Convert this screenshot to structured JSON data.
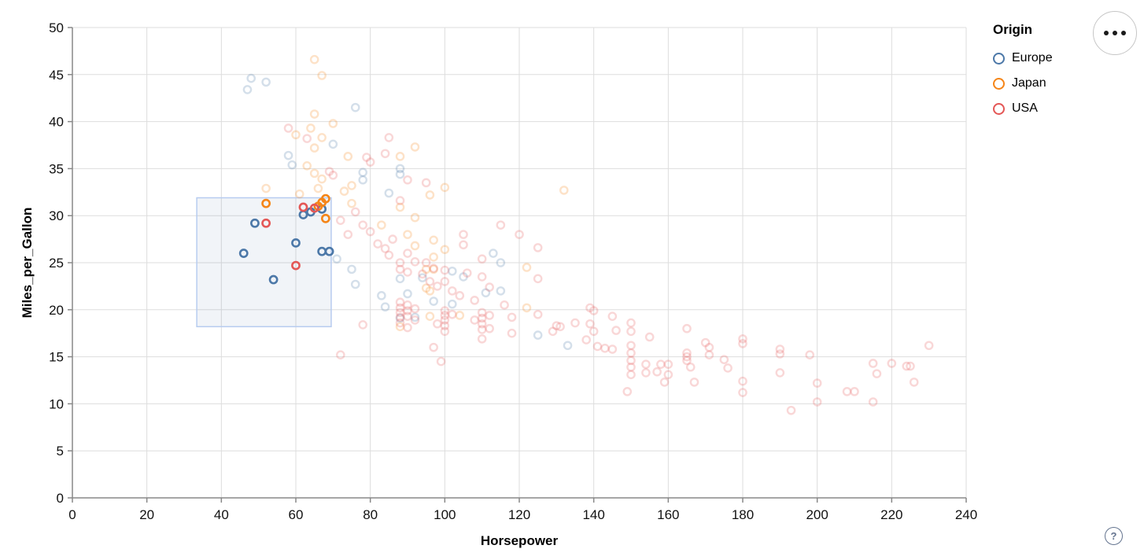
{
  "app": {
    "help_button_label": "?",
    "menu_button_icon": "ellipsis"
  },
  "legend": {
    "title": "Origin",
    "items": [
      {
        "label": "Europe",
        "color": "#4c78a8"
      },
      {
        "label": "Japan",
        "color": "#f58518"
      },
      {
        "label": "USA",
        "color": "#e45756"
      }
    ]
  },
  "chart_data": {
    "type": "scatter",
    "title": "",
    "xlabel": "Horsepower",
    "ylabel": "Miles_per_Gallon",
    "xlim": [
      0,
      240
    ],
    "ylim": [
      0,
      50
    ],
    "xticks": [
      0,
      20,
      40,
      60,
      80,
      100,
      120,
      140,
      160,
      180,
      200,
      220,
      240
    ],
    "yticks": [
      0,
      5,
      10,
      15,
      20,
      25,
      30,
      35,
      40,
      45,
      50
    ],
    "grid": true,
    "legend_position": "top-right",
    "point_style": {
      "shape": "open-circle",
      "radius": 4.6,
      "stroke_width": 2.4,
      "unselected_opacity": 0.24
    },
    "brush_selection": {
      "x": [
        33.4,
        69.5
      ],
      "y": [
        18.2,
        31.9
      ],
      "fill": "#4c78a8",
      "fill_opacity": 0.08,
      "stroke": "#b7ccf0"
    },
    "series": [
      {
        "name": "Europe",
        "color": "#4c78a8",
        "selected_points": [
          [
            46,
            26
          ],
          [
            49,
            29.2
          ],
          [
            54,
            23.2
          ],
          [
            60,
            27.1
          ],
          [
            62,
            30.1
          ],
          [
            64,
            30.4
          ],
          [
            67,
            26.2
          ],
          [
            69,
            26.2
          ],
          [
            67,
            30.7
          ]
        ],
        "unselected_points": [
          [
            48,
            44.6
          ],
          [
            52,
            44.2
          ],
          [
            47,
            43.4
          ],
          [
            76,
            41.5
          ],
          [
            70,
            37.6
          ],
          [
            58,
            36.4
          ],
          [
            59,
            35.4
          ],
          [
            78,
            34.6
          ],
          [
            88,
            35
          ],
          [
            88,
            34.4
          ],
          [
            78,
            33.8
          ],
          [
            85,
            32.4
          ],
          [
            75,
            24.3
          ],
          [
            76,
            22.7
          ],
          [
            88,
            23.3
          ],
          [
            94,
            23.4
          ],
          [
            71,
            25.4
          ],
          [
            83,
            21.5
          ],
          [
            84,
            20.3
          ],
          [
            90,
            21.7
          ],
          [
            97,
            20.9
          ],
          [
            102,
            24.1
          ],
          [
            105,
            23.5
          ],
          [
            111,
            21.8
          ],
          [
            113,
            26
          ],
          [
            115,
            25
          ],
          [
            115,
            22
          ],
          [
            102,
            20.6
          ],
          [
            88,
            19.1
          ],
          [
            92,
            19.2
          ],
          [
            125,
            17.3
          ],
          [
            133,
            16.2
          ]
        ]
      },
      {
        "name": "Japan",
        "color": "#f58518",
        "selected_points": [
          [
            52,
            31.3
          ],
          [
            66,
            31
          ],
          [
            68,
            31.8
          ],
          [
            67,
            31.4
          ],
          [
            68,
            29.7
          ]
        ],
        "unselected_points": [
          [
            65,
            46.6
          ],
          [
            67,
            44.9
          ],
          [
            65,
            40.8
          ],
          [
            70,
            39.8
          ],
          [
            64,
            39.3
          ],
          [
            60,
            38.6
          ],
          [
            67,
            38.3
          ],
          [
            65,
            37.2
          ],
          [
            74,
            36.3
          ],
          [
            63,
            35.3
          ],
          [
            65,
            34.5
          ],
          [
            67,
            33.9
          ],
          [
            75,
            33.2
          ],
          [
            73,
            32.6
          ],
          [
            61,
            32.3
          ],
          [
            66,
            32.9
          ],
          [
            52,
            32.9
          ],
          [
            92,
            37.3
          ],
          [
            88,
            36.3
          ],
          [
            100,
            33
          ],
          [
            96,
            32.2
          ],
          [
            132,
            32.7
          ],
          [
            75,
            31.3
          ],
          [
            88,
            30.9
          ],
          [
            92,
            29.8
          ],
          [
            83,
            29
          ],
          [
            90,
            28
          ],
          [
            97,
            27.4
          ],
          [
            92,
            26.8
          ],
          [
            100,
            26.4
          ],
          [
            97,
            25.6
          ],
          [
            122,
            24.5
          ],
          [
            95,
            24.3
          ],
          [
            97,
            24.3
          ],
          [
            95,
            22.3
          ],
          [
            96,
            22
          ],
          [
            122,
            20.2
          ],
          [
            104,
            19.4
          ],
          [
            96,
            19.3
          ],
          [
            88,
            18.2
          ]
        ]
      },
      {
        "name": "USA",
        "color": "#e45756",
        "selected_points": [
          [
            52,
            29.2
          ],
          [
            60,
            24.7
          ],
          [
            62,
            30.9
          ],
          [
            65,
            30.8
          ]
        ],
        "unselected_points": [
          [
            58,
            39.3
          ],
          [
            63,
            38.2
          ],
          [
            85,
            38.3
          ],
          [
            80,
            35.7
          ],
          [
            84,
            36.6
          ],
          [
            90,
            33.8
          ],
          [
            69,
            34.7
          ],
          [
            70,
            34.3
          ],
          [
            79,
            36.2
          ],
          [
            95,
            33.5
          ],
          [
            88,
            31.6
          ],
          [
            72,
            29.5
          ],
          [
            74,
            28
          ],
          [
            76,
            30.4
          ],
          [
            78,
            29
          ],
          [
            80,
            28.3
          ],
          [
            82,
            27
          ],
          [
            84,
            26.5
          ],
          [
            85,
            25.8
          ],
          [
            86,
            27.5
          ],
          [
            88,
            25
          ],
          [
            88,
            24.3
          ],
          [
            90,
            26
          ],
          [
            90,
            24
          ],
          [
            92,
            25.1
          ],
          [
            94,
            23.8
          ],
          [
            95,
            25
          ],
          [
            96,
            23
          ],
          [
            97,
            24.4
          ],
          [
            98,
            22.5
          ],
          [
            100,
            24.2
          ],
          [
            100,
            23
          ],
          [
            102,
            22
          ],
          [
            104,
            21.5
          ],
          [
            105,
            28
          ],
          [
            105,
            26.9
          ],
          [
            106,
            23.9
          ],
          [
            108,
            21
          ],
          [
            110,
            25.4
          ],
          [
            110,
            23.5
          ],
          [
            112,
            22.4
          ],
          [
            115,
            29
          ],
          [
            116,
            20.5
          ],
          [
            118,
            19.2
          ],
          [
            120,
            28
          ],
          [
            125,
            26.6
          ],
          [
            125,
            23.3
          ],
          [
            118,
            17.5
          ],
          [
            88,
            20.8
          ],
          [
            88,
            20.2
          ],
          [
            88,
            19.7
          ],
          [
            88,
            19.2
          ],
          [
            88,
            18.6
          ],
          [
            90,
            20.5
          ],
          [
            90,
            19.9
          ],
          [
            90,
            19.3
          ],
          [
            90,
            18.1
          ],
          [
            92,
            20.1
          ],
          [
            92,
            18.9
          ],
          [
            100,
            19.9
          ],
          [
            100,
            19.4
          ],
          [
            100,
            18.9
          ],
          [
            100,
            18.3
          ],
          [
            100,
            17.7
          ],
          [
            102,
            19.5
          ],
          [
            98,
            18.5
          ],
          [
            110,
            19.7
          ],
          [
            110,
            19.1
          ],
          [
            110,
            18.5
          ],
          [
            110,
            17.9
          ],
          [
            110,
            16.9
          ],
          [
            112,
            19.4
          ],
          [
            112,
            18
          ],
          [
            108,
            18.9
          ],
          [
            72,
            15.2
          ],
          [
            78,
            18.4
          ],
          [
            97,
            16
          ],
          [
            99,
            14.5
          ],
          [
            125,
            19.5
          ],
          [
            130,
            18.3
          ],
          [
            131,
            18.2
          ],
          [
            129,
            17.7
          ],
          [
            135,
            18.6
          ],
          [
            139,
            20.2
          ],
          [
            140,
            19.9
          ],
          [
            139,
            18.5
          ],
          [
            140,
            17.7
          ],
          [
            138,
            16.8
          ],
          [
            141,
            16.1
          ],
          [
            143,
            15.9
          ],
          [
            145,
            19.3
          ],
          [
            146,
            17.8
          ],
          [
            145,
            15.8
          ],
          [
            150,
            18.6
          ],
          [
            150,
            17.7
          ],
          [
            150,
            16.2
          ],
          [
            150,
            15.4
          ],
          [
            150,
            14.6
          ],
          [
            150,
            13.9
          ],
          [
            150,
            13.1
          ],
          [
            149,
            11.3
          ],
          [
            155,
            17.1
          ],
          [
            154,
            14.2
          ],
          [
            154,
            13.3
          ],
          [
            157,
            13.4
          ],
          [
            158,
            14.2
          ],
          [
            160,
            14.2
          ],
          [
            159,
            12.3
          ],
          [
            160,
            13.1
          ],
          [
            165,
            18
          ],
          [
            165,
            15.4
          ],
          [
            165,
            15
          ],
          [
            165,
            14.6
          ],
          [
            166,
            13.9
          ],
          [
            167,
            12.3
          ],
          [
            170,
            16.5
          ],
          [
            171,
            16
          ],
          [
            171,
            15.2
          ],
          [
            175,
            14.7
          ],
          [
            176,
            13.8
          ],
          [
            180,
            16.9
          ],
          [
            180,
            16.4
          ],
          [
            180,
            12.4
          ],
          [
            180,
            11.2
          ],
          [
            190,
            15.8
          ],
          [
            190,
            15.3
          ],
          [
            190,
            13.3
          ],
          [
            193,
            9.3
          ],
          [
            198,
            15.2
          ],
          [
            200,
            12.2
          ],
          [
            200,
            10.2
          ],
          [
            208,
            11.3
          ],
          [
            210,
            11.3
          ],
          [
            215,
            14.3
          ],
          [
            216,
            13.2
          ],
          [
            215,
            10.2
          ],
          [
            220,
            14.3
          ],
          [
            225,
            14
          ],
          [
            224,
            14
          ],
          [
            226,
            12.3
          ],
          [
            230,
            16.2
          ]
        ]
      }
    ]
  }
}
